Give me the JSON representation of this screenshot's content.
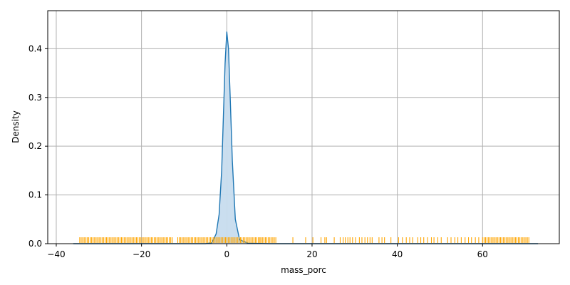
{
  "chart_data": {
    "type": "area",
    "title": "",
    "xlabel": "mass_porc",
    "ylabel": "Density",
    "xlim": [
      -42,
      78
    ],
    "ylim": [
      0,
      0.478
    ],
    "xticks": [
      -40,
      -20,
      0,
      20,
      40,
      60
    ],
    "xtick_labels": [
      "−40",
      "−20",
      "0",
      "20",
      "40",
      "60"
    ],
    "yticks": [
      0.0,
      0.1,
      0.2,
      0.3,
      0.4
    ],
    "ytick_labels": [
      "0.0",
      "0.1",
      "0.2",
      "0.3",
      "0.4"
    ],
    "grid": true,
    "colors": {
      "kde_line": "#1f77b4",
      "kde_fill": "#c7dcee",
      "rug": "#ffa500",
      "grid": "#b0b0b0"
    },
    "series": [
      {
        "kind": "kde",
        "x": [
          -36,
          -30,
          -20,
          -10,
          -5,
          -3.5,
          -2.5,
          -1.8,
          -1.2,
          -0.8,
          -0.4,
          0,
          0.4,
          0.8,
          1.3,
          2,
          3,
          5,
          10,
          20,
          40,
          60,
          70,
          73
        ],
        "y": [
          0,
          0,
          0,
          0,
          0,
          0.002,
          0.02,
          0.06,
          0.15,
          0.26,
          0.37,
          0.435,
          0.4,
          0.3,
          0.17,
          0.05,
          0.008,
          0.001,
          0,
          0,
          0,
          0,
          0,
          0
        ]
      },
      {
        "kind": "rug",
        "segments": [
          [
            -34.5,
            -12.5
          ],
          [
            -11.5,
            8
          ],
          [
            8,
            11.5
          ],
          [
            60,
            71
          ]
        ],
        "points": [
          15.5,
          18.5,
          20.2,
          22.1,
          23.0,
          23.4,
          25.2,
          26.6,
          27.3,
          27.8,
          28.4,
          28.9,
          29.5,
          30.2,
          31.1,
          31.7,
          32.4,
          33.0,
          33.6,
          34.1,
          35.7,
          36.4,
          37.0,
          38.5,
          40.3,
          41.2,
          42.1,
          42.9,
          43.6,
          44.8,
          45.5,
          46.2,
          47.1,
          48.0,
          48.6,
          49.5,
          50.3,
          51.8,
          52.6,
          53.5,
          54.2,
          55.0,
          55.9,
          56.7,
          57.4,
          58.3,
          59.1
        ]
      }
    ]
  }
}
